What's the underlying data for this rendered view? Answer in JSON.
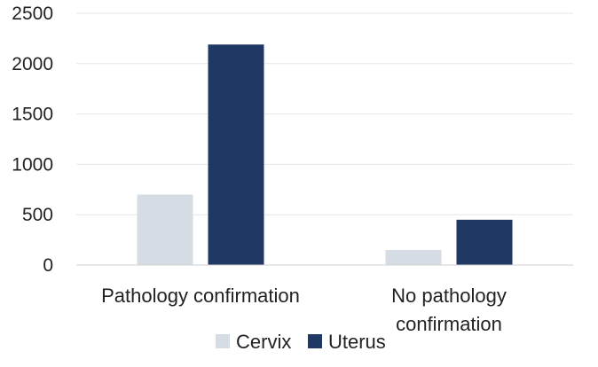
{
  "chart_data": {
    "type": "bar",
    "title": "",
    "xlabel": "",
    "ylabel": "",
    "categories": [
      "Pathology confirmation",
      "No pathology confirmation"
    ],
    "category_lines": [
      [
        "Pathology confirmation"
      ],
      [
        "No pathology",
        "confirmation"
      ]
    ],
    "series": [
      {
        "name": "Cervix",
        "color": "#d6dce4",
        "values": [
          700,
          150
        ]
      },
      {
        "name": "Uterus",
        "color": "#203864",
        "values": [
          2190,
          450
        ]
      }
    ],
    "ylim": [
      0,
      2500
    ],
    "yticks": [
      0,
      500,
      1000,
      1500,
      2000,
      2500
    ],
    "grid": true,
    "legend": "bottom"
  }
}
